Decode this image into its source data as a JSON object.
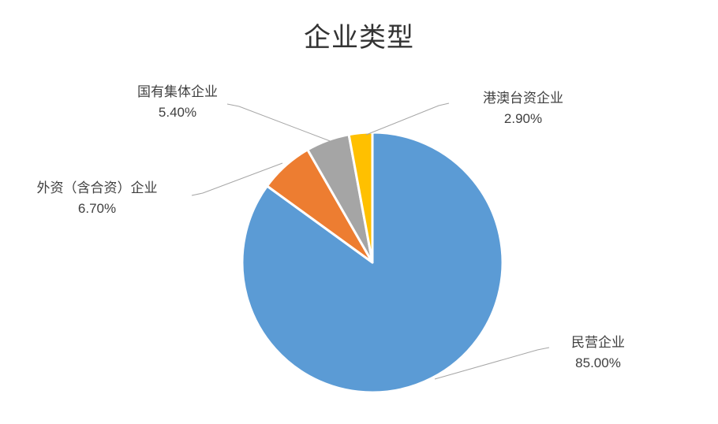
{
  "chart": {
    "title": "企业类型"
  },
  "chart_data": {
    "type": "pie",
    "title": "企业类型",
    "start_angle_deg": 0,
    "direction": "clockwise",
    "legend_position": "none",
    "label_style": "outside-callouts-with-leader-lines",
    "background_color": "#ffffff",
    "leader_line_color": "#a6a6a6",
    "slices": [
      {
        "name": "民营企业",
        "value": 85.0,
        "pct_label": "85.00%",
        "color": "#5B9BD5"
      },
      {
        "name": "外资（含合资）企业",
        "value": 6.7,
        "pct_label": "6.70%",
        "color": "#ED7D31"
      },
      {
        "name": "国有集体企业",
        "value": 5.4,
        "pct_label": "5.40%",
        "color": "#A5A5A5"
      },
      {
        "name": "港澳台资企业",
        "value": 2.9,
        "pct_label": "2.90%",
        "color": "#FFC000"
      }
    ]
  }
}
